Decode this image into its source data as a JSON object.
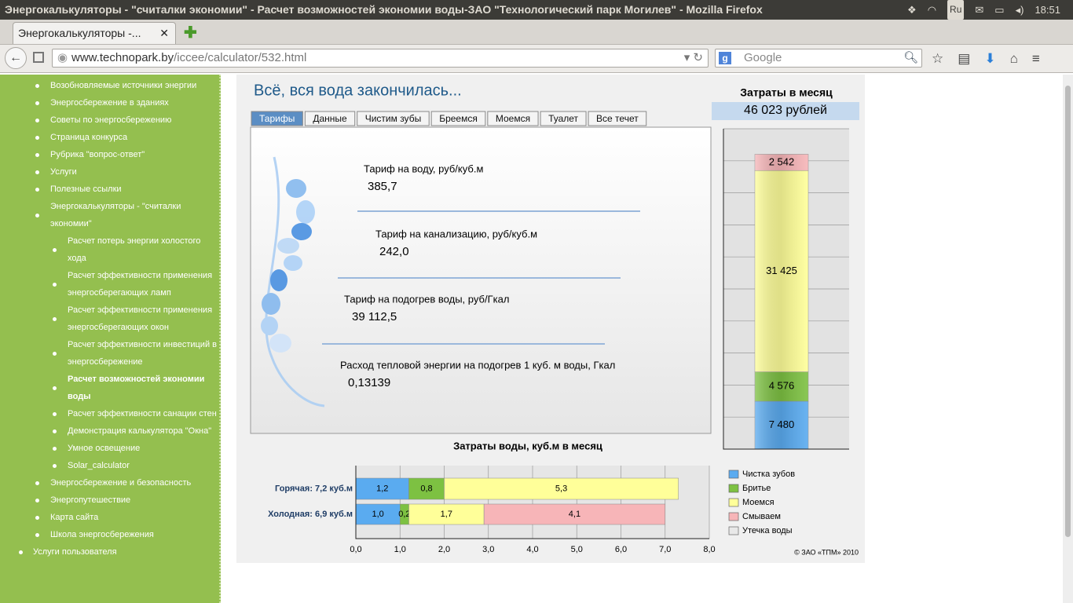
{
  "window": {
    "title": "Энергокалькуляторы - \"считалки экономии\" - Расчет возможностей экономии воды-ЗАО \"Технологический парк Могилев\" - Mozilla Firefox",
    "keyboard": "Ru",
    "clock": "18:51"
  },
  "browser": {
    "tab": "Энергокалькуляторы -...",
    "url_host": "www.technopark.by",
    "url_path": "/iccee/calculator/532.html",
    "search_placeholder": "Google"
  },
  "sidebar": {
    "items": [
      {
        "text": "Возобновляемые источники энергии",
        "level": 0
      },
      {
        "text": "Энергосбережение в зданиях",
        "level": 0
      },
      {
        "text": "Советы по энергосбережению",
        "level": 0
      },
      {
        "text": "Страница конкурса",
        "level": 0
      },
      {
        "text": "Рубрика \"вопрос-ответ\"",
        "level": 0
      },
      {
        "text": "Услуги",
        "level": 0
      },
      {
        "text": "Полезные ссылки",
        "level": 0
      },
      {
        "text": "Энергокалькуляторы - \"считалки экономии\"",
        "level": 0
      },
      {
        "text": "Расчет потерь энергии холостого хода",
        "level": 1
      },
      {
        "text": "Расчет эффективности применения энергосберегающих ламп",
        "level": 1
      },
      {
        "text": "Расчет эффективности применения энергосберегающих окон",
        "level": 1
      },
      {
        "text": "Расчет эффективности инвестиций в энергосбережение",
        "level": 1
      },
      {
        "text": "Расчет возможностей экономии воды",
        "level": 1,
        "bold": true
      },
      {
        "text": "Расчет эффективности санации стен",
        "level": 1
      },
      {
        "text": "Демонстрация калькулятора \"Окна\"",
        "level": 1
      },
      {
        "text": "Умное освещение",
        "level": 1
      },
      {
        "text": "Solar_calculator",
        "level": 1
      },
      {
        "text": "Энергосбережение и безопасность",
        "level": 0
      },
      {
        "text": "Энергопутешествие",
        "level": 0
      },
      {
        "text": "Карта сайта",
        "level": 0
      },
      {
        "text": "Школа энергосбережения",
        "level": 0
      },
      {
        "text": "Услуги пользователя",
        "level": -1
      }
    ]
  },
  "calculator": {
    "title": "Всё, вся вода закончилась...",
    "tabs": [
      "Тарифы",
      "Данные",
      "Чистим зубы",
      "Бреемся",
      "Моемся",
      "Туалет",
      "Все течет"
    ],
    "active_tab": 0,
    "fields": [
      {
        "label": "Тариф на воду, руб/куб.м",
        "value": "385,7"
      },
      {
        "label": "Тариф на канализацию, руб/куб.м",
        "value": "242,0"
      },
      {
        "label": "Тариф на подогрев воды, руб/Гкал",
        "value": "39 112,5"
      },
      {
        "label": "Расход тепловой энергии на подогрев 1 куб. м воды, Гкал",
        "value": "0,13139"
      }
    ],
    "copyright": "© ЗАО «ТПМ» 2010"
  },
  "cost_chart": {
    "type": "bar",
    "stacked": true,
    "title": "Затраты в месяц",
    "total_label": "46 023 рублей",
    "values": [
      7480,
      4576,
      31425,
      2542
    ],
    "value_labels": [
      "7 480",
      "4 576",
      "31 425",
      "2 542"
    ],
    "colors": [
      "#5aabf0",
      "#7dc142",
      "#ffff99",
      "#f7b5b8"
    ],
    "ylim": [
      0,
      50000
    ],
    "ygrid": [
      0,
      5000,
      10000,
      15000,
      20000,
      25000,
      30000,
      35000,
      40000,
      45000,
      50000
    ]
  },
  "water_chart": {
    "type": "bar",
    "orientation": "horizontal",
    "stacked": true,
    "title": "Затраты воды, куб.м в месяц",
    "categories": [
      "Горячая: 7,2  куб.м",
      "Холодная: 6,9  куб.м"
    ],
    "series": [
      {
        "name": "Чистка зубов",
        "color": "#5aabf0",
        "values": [
          1.2,
          1.0
        ],
        "value_labels": [
          "1,2",
          "1,0"
        ]
      },
      {
        "name": "Бритье",
        "color": "#7dc142",
        "values": [
          0.8,
          0.2
        ],
        "value_labels": [
          "0,8",
          "0,2"
        ]
      },
      {
        "name": "Моемся",
        "color": "#ffff99",
        "values": [
          5.3,
          1.7
        ],
        "value_labels": [
          "5,3",
          "1,7"
        ]
      },
      {
        "name": "Смываем",
        "color": "#f7b5b8",
        "values": [
          null,
          4.1
        ],
        "value_labels": [
          null,
          "4,1"
        ]
      },
      {
        "name": "Утечка воды",
        "color": "#e8e8e8",
        "values": [
          null,
          null
        ],
        "value_labels": [
          null,
          null
        ]
      }
    ],
    "xlim": [
      0,
      8
    ],
    "xticks": [
      {
        "value": 0,
        "label": "0,0"
      },
      {
        "value": 1,
        "label": "1,0"
      },
      {
        "value": 2,
        "label": "2,0"
      },
      {
        "value": 3,
        "label": "3,0"
      },
      {
        "value": 4,
        "label": "4,0"
      },
      {
        "value": 5,
        "label": "5,0"
      },
      {
        "value": 6,
        "label": "6,0"
      },
      {
        "value": 7,
        "label": "7,0"
      },
      {
        "value": 8,
        "label": "8,0"
      }
    ],
    "grid": true
  }
}
